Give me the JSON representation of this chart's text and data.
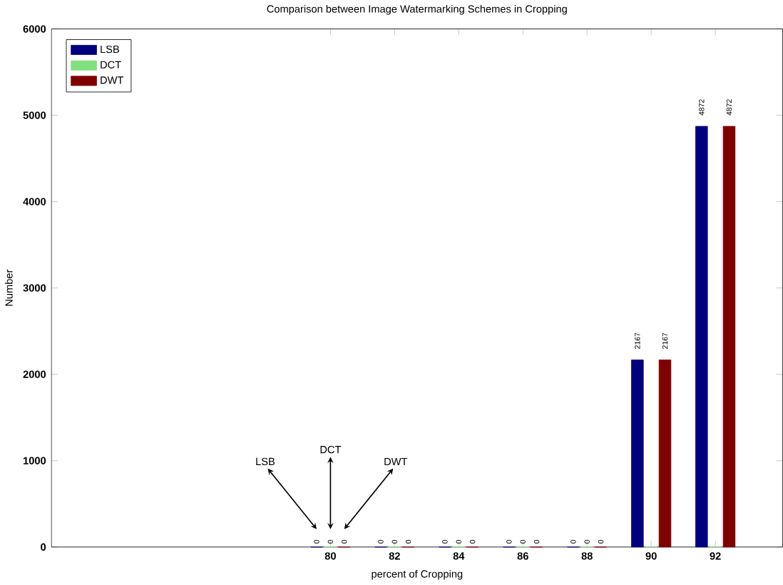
{
  "chart_data": {
    "type": "bar",
    "title": "Comparison between Image Watermarking Schemes in Cropping",
    "xlabel": "percent of Cropping",
    "ylabel": "Number",
    "x": [
      80,
      82,
      84,
      86,
      88,
      90,
      92
    ],
    "series": [
      {
        "name": "LSB",
        "color": "#000080",
        "values": [
          0,
          0,
          0,
          0,
          0,
          2167,
          4872
        ],
        "value_labels": [
          "0",
          "0",
          "0",
          "0",
          "0",
          "2167",
          "4872"
        ]
      },
      {
        "name": "DCT",
        "color": "#80e080",
        "values": [
          0,
          0,
          0,
          0,
          0,
          0,
          0
        ],
        "value_labels": [
          "0",
          "0",
          "0",
          "0",
          "0",
          null,
          null
        ]
      },
      {
        "name": "DWT",
        "color": "#800000",
        "values": [
          0,
          0,
          0,
          0,
          0,
          2167,
          4872
        ],
        "value_labels": [
          "0",
          "0",
          "0",
          "0",
          "0",
          "2167",
          "4872"
        ]
      }
    ],
    "xlim": [
      71.3,
      94.1
    ],
    "xticks": [
      80,
      82,
      84,
      86,
      88,
      90,
      92
    ],
    "ylim": [
      0,
      6000
    ],
    "yticks": [
      0,
      1000,
      2000,
      3000,
      4000,
      5000,
      6000
    ],
    "legend": "top left",
    "grid": false,
    "annotations": [
      "LSB",
      "DCT",
      "DWT"
    ]
  }
}
